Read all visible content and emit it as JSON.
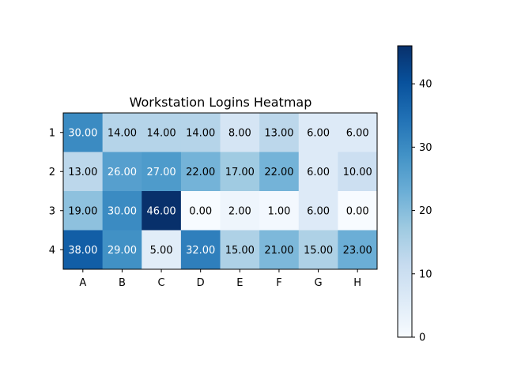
{
  "chart_data": {
    "type": "heatmap",
    "title": "Workstation Logins Heatmap",
    "x_categories": [
      "A",
      "B",
      "C",
      "D",
      "E",
      "F",
      "G",
      "H"
    ],
    "y_categories": [
      "1",
      "2",
      "3",
      "4"
    ],
    "values": [
      [
        30,
        14,
        14,
        14,
        8,
        13,
        6,
        6
      ],
      [
        13,
        26,
        27,
        22,
        17,
        22,
        6,
        10
      ],
      [
        19,
        30,
        46,
        0,
        2,
        1,
        6,
        0
      ],
      [
        38,
        29,
        5,
        32,
        15,
        21,
        15,
        23
      ]
    ],
    "value_format_decimals": 2,
    "colormap": "Blues",
    "colorbar": {
      "min": 0,
      "max": 46,
      "ticks": [
        0,
        10,
        20,
        30,
        40
      ]
    }
  }
}
